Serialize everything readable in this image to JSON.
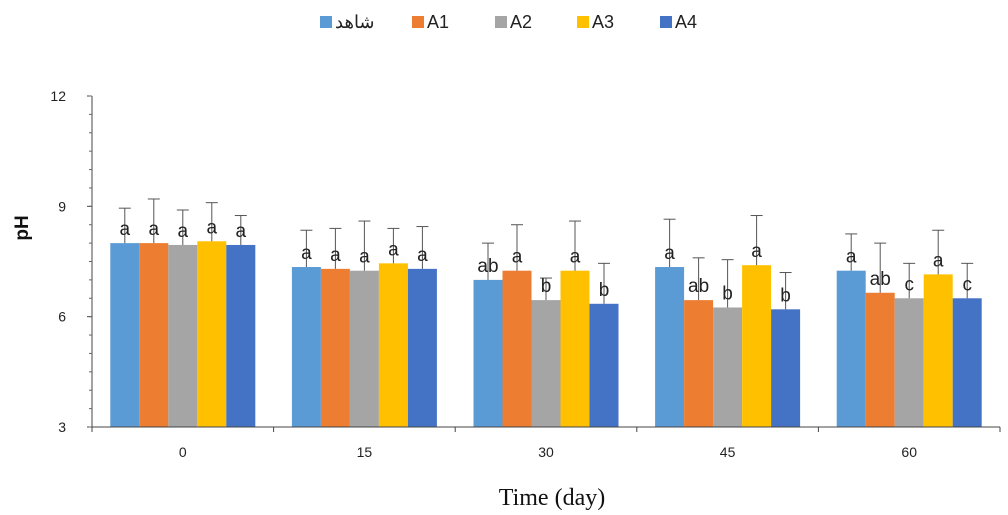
{
  "chart_data": {
    "type": "bar",
    "title": "",
    "xlabel": "Time (day)",
    "ylabel": "pH",
    "ylim": [
      3,
      12
    ],
    "yticks": [
      "3",
      "6",
      "9",
      "12"
    ],
    "categories": [
      "0",
      "15",
      "30",
      "45",
      "60"
    ],
    "legend_position": "top",
    "series": [
      {
        "name": "شاهد",
        "color": "#5B9BD5",
        "values": [
          8.0,
          7.35,
          7.0,
          7.35,
          7.25
        ],
        "errors": [
          0.95,
          1.0,
          1.0,
          1.3,
          1.0
        ],
        "labels": [
          "a",
          "a",
          "ab",
          "a",
          "a"
        ]
      },
      {
        "name": "A1",
        "color": "#ED7D31",
        "values": [
          8.0,
          7.3,
          7.25,
          6.45,
          6.65
        ],
        "errors": [
          1.2,
          1.1,
          1.25,
          1.15,
          1.35
        ],
        "labels": [
          "a",
          "a",
          "a",
          "ab",
          "ab"
        ]
      },
      {
        "name": "A2",
        "color": "#A5A5A5",
        "values": [
          7.95,
          7.25,
          6.45,
          6.25,
          6.5
        ],
        "errors": [
          0.95,
          1.35,
          0.6,
          1.3,
          0.95
        ],
        "labels": [
          "a",
          "a",
          "b",
          "b",
          "c"
        ]
      },
      {
        "name": "A3",
        "color": "#FFC000",
        "values": [
          8.05,
          7.45,
          7.25,
          7.4,
          7.15
        ],
        "errors": [
          1.05,
          0.95,
          1.35,
          1.35,
          1.2
        ],
        "labels": [
          "a",
          "a",
          "a",
          "a",
          "a"
        ]
      },
      {
        "name": "A4",
        "color": "#4472C4",
        "values": [
          7.95,
          7.3,
          6.35,
          6.2,
          6.5
        ],
        "errors": [
          0.8,
          1.15,
          1.1,
          1.0,
          0.95
        ],
        "labels": [
          "a",
          "a",
          "b",
          "b",
          "c"
        ]
      }
    ]
  }
}
